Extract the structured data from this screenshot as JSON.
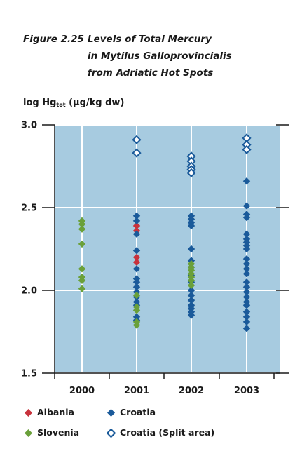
{
  "title": {
    "figure": "Figure 2.25",
    "line1": "Levels of Total Mercury",
    "line2": "in Mytilus Galloprovincialis",
    "line3": "from Adriatic Hot Spots"
  },
  "chart_data": {
    "type": "scatter",
    "title": "Levels of Total Mercury in Mytilus Galloprovincialis from Adriatic Hot Spots",
    "ylabel": "log Hgtot (µg/kg dw)",
    "ylabel_parts": {
      "pre": "log Hg",
      "sub": "tot",
      "post": " (µg/kg dw)"
    },
    "categories": [
      "2000",
      "2001",
      "2002",
      "2003"
    ],
    "ylim": [
      1.5,
      3.0
    ],
    "yticks": [
      "1.5",
      "2.0",
      "2.5",
      "3.0"
    ],
    "grid": true,
    "legend_position": "bottom",
    "series": [
      {
        "name": "Albania",
        "color": "#c8323c",
        "marker": "filled-diamond",
        "points": [
          {
            "x": "2001",
            "y": 2.39
          },
          {
            "x": "2001",
            "y": 2.36
          },
          {
            "x": "2001",
            "y": 2.2
          },
          {
            "x": "2001",
            "y": 2.17
          }
        ]
      },
      {
        "name": "Croatia",
        "color": "#1a5a9a",
        "marker": "filled-diamond",
        "points": [
          {
            "x": "2001",
            "y": 2.45
          },
          {
            "x": "2001",
            "y": 2.42
          },
          {
            "x": "2001",
            "y": 2.34
          },
          {
            "x": "2001",
            "y": 2.24
          },
          {
            "x": "2001",
            "y": 2.13
          },
          {
            "x": "2001",
            "y": 2.07
          },
          {
            "x": "2001",
            "y": 2.05
          },
          {
            "x": "2001",
            "y": 2.02
          },
          {
            "x": "2001",
            "y": 1.99
          },
          {
            "x": "2001",
            "y": 1.96
          },
          {
            "x": "2001",
            "y": 1.93
          },
          {
            "x": "2001",
            "y": 1.91
          },
          {
            "x": "2001",
            "y": 1.84
          },
          {
            "x": "2001",
            "y": 1.82
          },
          {
            "x": "2002",
            "y": 2.45
          },
          {
            "x": "2002",
            "y": 2.43
          },
          {
            "x": "2002",
            "y": 2.41
          },
          {
            "x": "2002",
            "y": 2.39
          },
          {
            "x": "2002",
            "y": 2.25
          },
          {
            "x": "2002",
            "y": 2.18
          },
          {
            "x": "2002",
            "y": 2.14
          },
          {
            "x": "2002",
            "y": 2.09
          },
          {
            "x": "2002",
            "y": 2.05
          },
          {
            "x": "2002",
            "y": 2.0
          },
          {
            "x": "2002",
            "y": 1.97
          },
          {
            "x": "2002",
            "y": 1.94
          },
          {
            "x": "2002",
            "y": 1.91
          },
          {
            "x": "2002",
            "y": 1.89
          },
          {
            "x": "2002",
            "y": 1.87
          },
          {
            "x": "2002",
            "y": 1.85
          },
          {
            "x": "2003",
            "y": 2.66
          },
          {
            "x": "2003",
            "y": 2.51
          },
          {
            "x": "2003",
            "y": 2.46
          },
          {
            "x": "2003",
            "y": 2.44
          },
          {
            "x": "2003",
            "y": 2.34
          },
          {
            "x": "2003",
            "y": 2.31
          },
          {
            "x": "2003",
            "y": 2.29
          },
          {
            "x": "2003",
            "y": 2.27
          },
          {
            "x": "2003",
            "y": 2.25
          },
          {
            "x": "2003",
            "y": 2.19
          },
          {
            "x": "2003",
            "y": 2.16
          },
          {
            "x": "2003",
            "y": 2.13
          },
          {
            "x": "2003",
            "y": 2.1
          },
          {
            "x": "2003",
            "y": 2.05
          },
          {
            "x": "2003",
            "y": 2.02
          },
          {
            "x": "2003",
            "y": 1.99
          },
          {
            "x": "2003",
            "y": 1.96
          },
          {
            "x": "2003",
            "y": 1.93
          },
          {
            "x": "2003",
            "y": 1.91
          },
          {
            "x": "2003",
            "y": 1.87
          },
          {
            "x": "2003",
            "y": 1.84
          },
          {
            "x": "2003",
            "y": 1.81
          },
          {
            "x": "2003",
            "y": 1.77
          }
        ]
      },
      {
        "name": "Slovenia",
        "color": "#6aa03a",
        "marker": "filled-diamond",
        "points": [
          {
            "x": "2000",
            "y": 2.42
          },
          {
            "x": "2000",
            "y": 2.4
          },
          {
            "x": "2000",
            "y": 2.37
          },
          {
            "x": "2000",
            "y": 2.28
          },
          {
            "x": "2000",
            "y": 2.13
          },
          {
            "x": "2000",
            "y": 2.08
          },
          {
            "x": "2000",
            "y": 2.06
          },
          {
            "x": "2000",
            "y": 2.01
          },
          {
            "x": "2001",
            "y": 1.97
          },
          {
            "x": "2001",
            "y": 1.9
          },
          {
            "x": "2001",
            "y": 1.88
          },
          {
            "x": "2001",
            "y": 1.81
          },
          {
            "x": "2001",
            "y": 1.79
          },
          {
            "x": "2002",
            "y": 2.16
          },
          {
            "x": "2002",
            "y": 2.14
          },
          {
            "x": "2002",
            "y": 2.12
          },
          {
            "x": "2002",
            "y": 2.1
          },
          {
            "x": "2002",
            "y": 2.08
          },
          {
            "x": "2002",
            "y": 2.06
          },
          {
            "x": "2002",
            "y": 2.03
          }
        ]
      },
      {
        "name": "Croatia (Split area)",
        "color": "#1a5a9a",
        "marker": "open-diamond",
        "points": [
          {
            "x": "2001",
            "y": 2.91
          },
          {
            "x": "2001",
            "y": 2.83
          },
          {
            "x": "2002",
            "y": 2.81
          },
          {
            "x": "2002",
            "y": 2.78
          },
          {
            "x": "2002",
            "y": 2.75
          },
          {
            "x": "2002",
            "y": 2.73
          },
          {
            "x": "2002",
            "y": 2.71
          },
          {
            "x": "2003",
            "y": 2.92
          },
          {
            "x": "2003",
            "y": 2.88
          },
          {
            "x": "2003",
            "y": 2.85
          }
        ]
      }
    ]
  },
  "colors": {
    "plot_bg": "#a7cbe0",
    "grid": "#ffffff",
    "axis": "#1a1a1a"
  }
}
